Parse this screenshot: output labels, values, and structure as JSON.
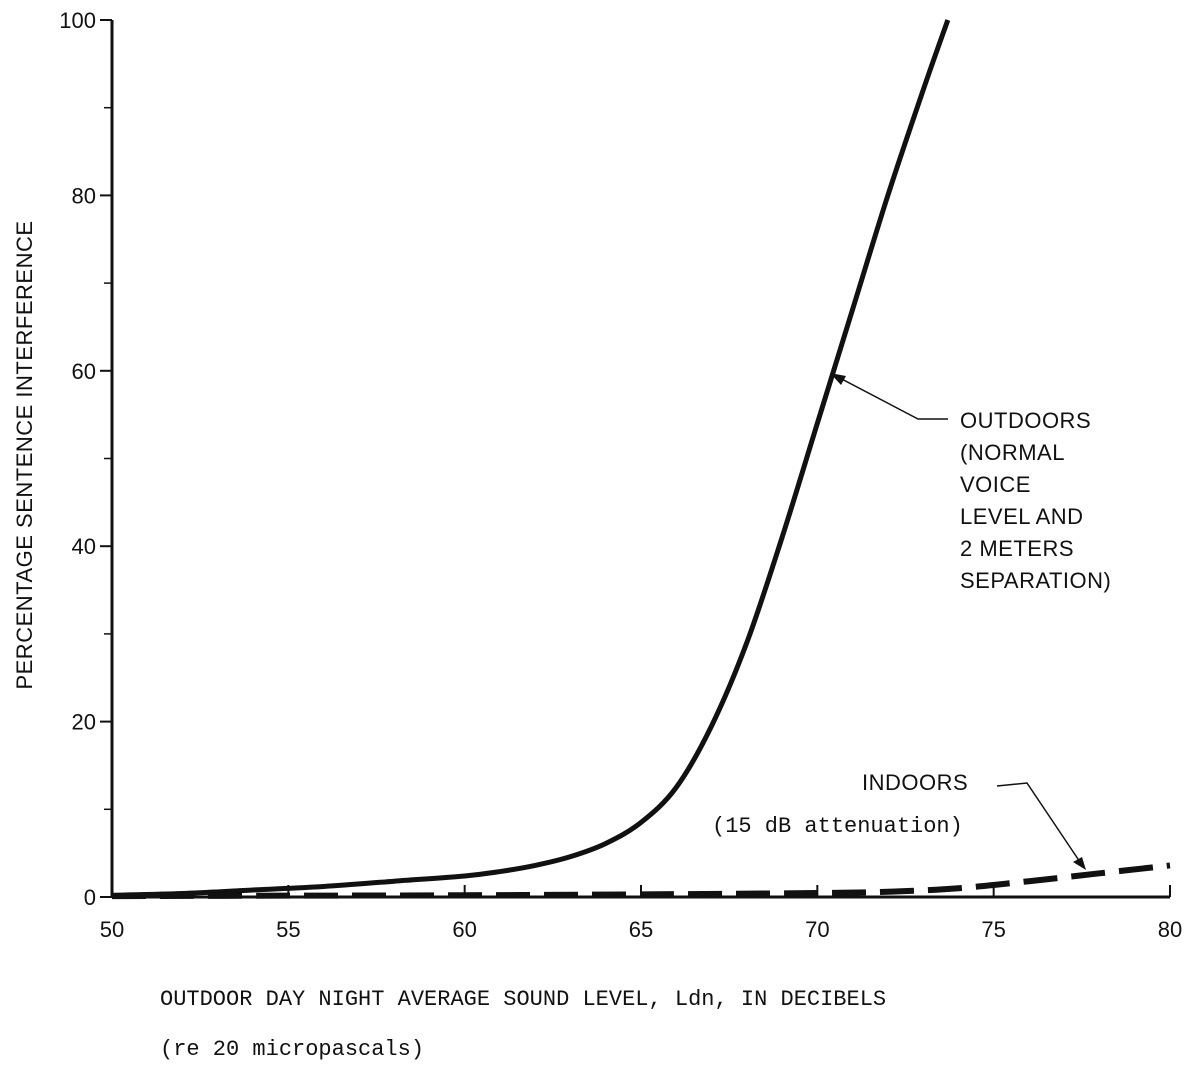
{
  "chart_data": {
    "type": "line",
    "title": "",
    "xlabel": "OUTDOOR DAY NIGHT AVERAGE SOUND LEVEL, Ldn, IN DECIBELS",
    "xlabel_sub": "(re 20 micropascals)",
    "ylabel": "PERCENTAGE SENTENCE INTERFERENCE",
    "xlim": [
      50,
      80
    ],
    "ylim": [
      0,
      100
    ],
    "xticks": [
      50,
      55,
      60,
      65,
      70,
      75,
      80
    ],
    "yticks": [
      0,
      20,
      40,
      60,
      80,
      100
    ],
    "grid": false,
    "series": [
      {
        "name": "OUTDOORS",
        "style": "solid",
        "x": [
          50,
          52,
          54,
          56,
          58,
          60,
          61,
          62,
          63,
          64,
          65,
          66,
          67,
          68,
          69,
          70,
          71,
          72,
          73,
          73.7
        ],
        "y": [
          0.2,
          0.4,
          0.8,
          1.2,
          1.8,
          2.4,
          2.9,
          3.6,
          4.6,
          6.1,
          8.5,
          12.5,
          19.5,
          29,
          41,
          54,
          67,
          80,
          92,
          100
        ]
      },
      {
        "name": "INDOORS",
        "style": "dashed",
        "x": [
          50,
          55,
          60,
          65,
          70,
          72,
          74,
          76,
          78,
          80
        ],
        "y": [
          0.1,
          0.15,
          0.2,
          0.3,
          0.45,
          0.6,
          1.0,
          1.8,
          2.7,
          3.6
        ]
      }
    ],
    "annotations": {
      "outdoors": [
        "OUTDOORS",
        "(NORMAL",
        "VOICE",
        "LEVEL AND",
        "2 METERS",
        "SEPARATION)"
      ],
      "indoors": [
        "INDOORS",
        "(15 dB attenuation)"
      ]
    }
  }
}
